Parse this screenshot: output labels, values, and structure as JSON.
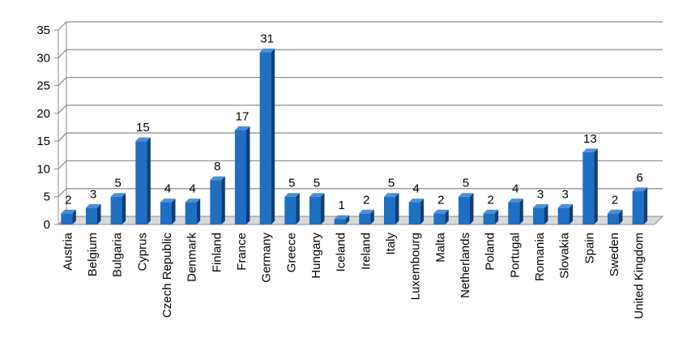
{
  "chart_data": {
    "type": "bar",
    "categories": [
      "Austria",
      "Belgium",
      "Bulgaria",
      "Cyprus",
      "Czech Republic",
      "Denmark",
      "Finland",
      "France",
      "Germany",
      "Greece",
      "Hungary",
      "Iceland",
      "Ireland",
      "Italy",
      "Luxembourg",
      "Malta",
      "Netherlands",
      "Poland",
      "Portugal",
      "Romania",
      "Slovakia",
      "Spain",
      "Sweden",
      "United Kingdom"
    ],
    "values": [
      2,
      3,
      5,
      15,
      4,
      4,
      8,
      17,
      31,
      5,
      5,
      1,
      2,
      5,
      4,
      2,
      5,
      2,
      4,
      3,
      3,
      13,
      2,
      6
    ],
    "data_labels": [
      "2",
      "3",
      "5",
      "15",
      "4",
      "4",
      "8",
      "17",
      "31",
      "5",
      "5",
      "1",
      "2",
      "5",
      "4",
      "2",
      "5",
      "2",
      "4",
      "3",
      "3",
      "13",
      "2",
      "6"
    ],
    "yticks": [
      "0",
      "5",
      "10",
      "15",
      "20",
      "25",
      "30",
      "35"
    ],
    "ylim": [
      0,
      35
    ],
    "title": "",
    "xlabel": "",
    "ylabel": "",
    "grid": true,
    "legend": "none",
    "colors": {
      "bar_front": "#1f6fc2",
      "bar_side": "#0d3f78",
      "bar_top": "#4d8fd6",
      "gridline": "#8c8c8c",
      "axis": "#8c8c8c",
      "floor": "#d9d9d9"
    }
  }
}
